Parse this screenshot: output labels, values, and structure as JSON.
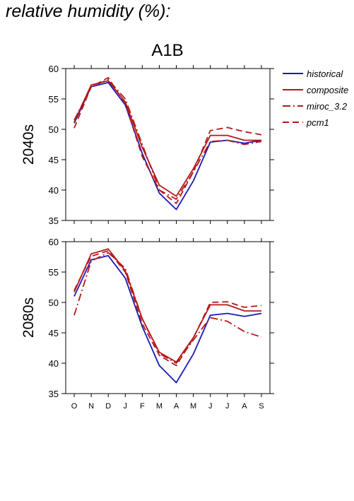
{
  "title": "relative humidity (%):",
  "chart_data": {
    "type": "line",
    "scenario": "A1B",
    "categories": [
      "O",
      "N",
      "D",
      "J",
      "F",
      "M",
      "A",
      "M",
      "J",
      "J",
      "A",
      "S"
    ],
    "legend": [
      {
        "name": "historical",
        "color": "#1a1ab4",
        "dash": "solid"
      },
      {
        "name": "composite",
        "color": "#b41a1a",
        "dash": "solid"
      },
      {
        "name": "miroc_3.2",
        "color": "#b41a1a",
        "dash": "dashdot"
      },
      {
        "name": "pcm1",
        "color": "#b41a1a",
        "dash": "dashed"
      }
    ],
    "legend_position": "top-right, outside",
    "panels": [
      {
        "label": "2040s",
        "ylim": [
          35,
          60
        ],
        "yticks": [
          35,
          40,
          45,
          50,
          55,
          60
        ],
        "series": [
          {
            "name": "historical",
            "values": [
              51.0,
              57.0,
              57.7,
              54.0,
              46.0,
              39.5,
              36.8,
              41.5,
              47.9,
              48.2,
              47.7,
              48.2
            ]
          },
          {
            "name": "composite",
            "values": [
              51.2,
              57.3,
              58.0,
              54.5,
              47.0,
              40.8,
              39.0,
              43.5,
              49.0,
              49.0,
              48.2,
              48.2
            ]
          },
          {
            "name": "miroc_3.2",
            "values": [
              51.5,
              57.0,
              58.2,
              55.0,
              47.5,
              40.0,
              38.5,
              43.0,
              48.0,
              48.2,
              47.5,
              48.0
            ]
          },
          {
            "name": "pcm1",
            "values": [
              50.2,
              57.0,
              58.5,
              54.2,
              45.5,
              40.0,
              37.8,
              43.0,
              49.8,
              50.3,
              49.6,
              49.1
            ]
          }
        ]
      },
      {
        "label": "2080s",
        "ylim": [
          35,
          60
        ],
        "yticks": [
          35,
          40,
          45,
          50,
          55,
          60
        ],
        "series": [
          {
            "name": "historical",
            "values": [
              51.0,
              57.0,
              57.7,
              54.0,
              46.0,
              39.6,
              36.8,
              41.5,
              47.9,
              48.2,
              47.7,
              48.2
            ]
          },
          {
            "name": "composite",
            "values": [
              51.7,
              58.0,
              58.8,
              55.2,
              47.3,
              41.8,
              40.2,
              44.2,
              49.6,
              49.6,
              48.6,
              48.6
            ]
          },
          {
            "name": "miroc_3.2",
            "values": [
              47.9,
              56.8,
              58.2,
              55.6,
              47.3,
              41.6,
              40.0,
              43.8,
              47.5,
              46.9,
              45.2,
              44.3
            ]
          },
          {
            "name": "pcm1",
            "values": [
              52.0,
              57.6,
              58.5,
              55.0,
              46.5,
              41.3,
              39.6,
              44.1,
              50.0,
              50.1,
              49.2,
              49.5
            ]
          }
        ]
      }
    ]
  }
}
